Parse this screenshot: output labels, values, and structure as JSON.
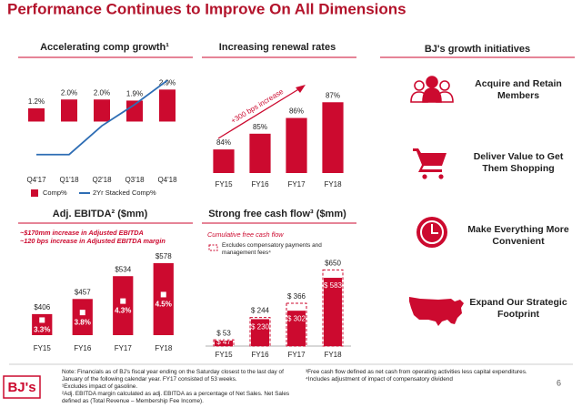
{
  "title": "Performance Continues to Improve On All Dimensions",
  "chart_data": [
    {
      "type": "bar",
      "title": "Accelerating comp growth¹",
      "categories": [
        "Q4'17",
        "Q1'18",
        "Q2'18",
        "Q3'18",
        "Q4'18"
      ],
      "series": [
        {
          "name": "Comp%",
          "color": "#cc0a2f",
          "values": [
            1.2,
            2.0,
            2.0,
            1.9,
            2.9
          ],
          "value_labels": [
            "1.2%",
            "2.0%",
            "2.0%",
            "1.9%",
            "2.9%"
          ]
        },
        {
          "name": "2Yr Stacked Comp%",
          "type": "line",
          "axis": "y2",
          "color": "#2e6db4",
          "values": [
            1.1,
            1.1,
            3.0,
            4.4,
            6.0
          ]
        }
      ],
      "ylim": [
        -4.5,
        4
      ],
      "y2lim": [
        0,
        6.2
      ],
      "legend": "bottom"
    },
    {
      "type": "bar",
      "title": "Increasing renewal rates",
      "annotation": "+300 bps increase",
      "categories": [
        "FY15",
        "FY16",
        "FY17",
        "FY18"
      ],
      "series": [
        {
          "color": "#cc0a2f",
          "values": [
            84,
            85,
            86,
            87
          ],
          "value_labels": [
            "84%",
            "85%",
            "86%",
            "87%"
          ]
        }
      ],
      "ylim": [
        82.5,
        88
      ]
    },
    {
      "type": "bar",
      "title": "Adj. EBITDA² ($mm)",
      "annotations": [
        "~$170mm increase in Adjusted EBITDA",
        "~120 bps increase in Adjusted EBITDA margin"
      ],
      "categories": [
        "FY15",
        "FY16",
        "FY17",
        "FY18"
      ],
      "series": [
        {
          "color": "#cc0a2f",
          "values": [
            406,
            457,
            534,
            578
          ],
          "value_labels": [
            "$406",
            "$457",
            "$534",
            "$578"
          ]
        }
      ],
      "margins": {
        "values": [
          3.3,
          3.8,
          4.3,
          4.5
        ],
        "value_labels": [
          "3.3%",
          "3.8%",
          "4.3%",
          "4.5%"
        ]
      },
      "ylim": [
        335,
        590
      ]
    },
    {
      "type": "bar",
      "title": "Strong free cash flow³ ($mm)",
      "subtitle": "Cumulative free cash flow",
      "categories": [
        "FY15",
        "FY16",
        "FY17",
        "FY18"
      ],
      "series": [
        {
          "name": "Excludes compensatory payments and management fees⁴",
          "color": "#cc0a2f",
          "style": "dashed",
          "values": [
            53,
            244,
            366,
            650
          ],
          "value_labels": [
            "$ 53",
            "$ 244",
            "$ 366",
            "$650"
          ]
        },
        {
          "color": "#cc0a2f",
          "values": [
            47,
            230,
            302,
            583
          ],
          "value_labels": [
            "$ 47",
            "$ 230",
            "$ 302",
            "$ 583"
          ],
          "label_position": "inside"
        }
      ],
      "ylim": [
        0,
        700
      ],
      "legend": "top-left"
    }
  ],
  "initiatives": {
    "title": "BJ's growth initiatives",
    "items": [
      "Acquire and Retain Members",
      "Deliver Value to Get Them Shopping",
      "Make Everything More Convenient",
      "Expand Our Strategic Footprint"
    ]
  },
  "footnotes": {
    "left": [
      "Note: Financials as of BJ's fiscal year ending on the Saturday closest to the last day of January of the following calendar year. FY17 consisted of 53 weeks.",
      "¹Excludes impact of gasoline.",
      "²Adj. EBITDA margin calculated as adj. EBITDA as a percentage of Net Sales. Net Sales defined as (Total Revenue – Membership Fee Income)."
    ],
    "right": [
      "³Free cash flow defined as net cash from operating activities less capital expenditures.",
      "⁴Includes adjustment of impact of compensatory dividend"
    ]
  },
  "logo": "BJ's",
  "page_number": "6"
}
